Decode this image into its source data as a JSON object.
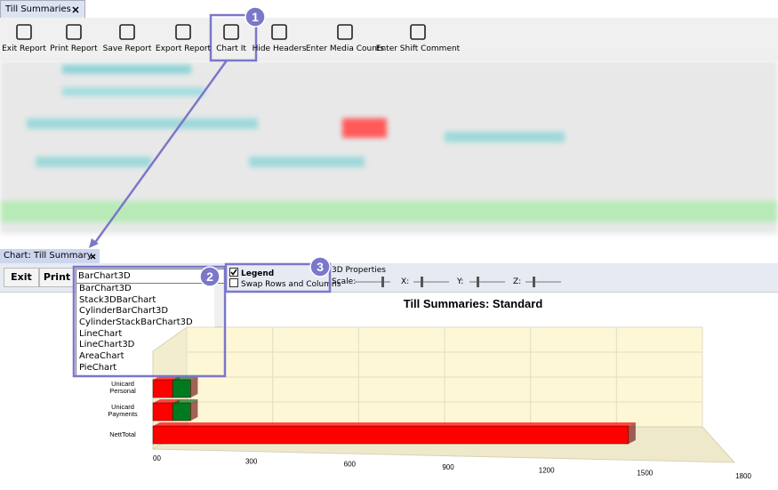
{
  "tab": {
    "title": "Till Summaries"
  },
  "toolbar": [
    "Exit Report",
    "Print Report",
    "Save Report",
    "Export Report",
    "Chart It",
    "Hide Headers",
    "Enter Media Counts",
    "Enter Shift Comment"
  ],
  "callouts": [
    "1",
    "2",
    "3"
  ],
  "chart_window": {
    "tab": "Chart: Till Summary",
    "buttons": [
      "Exit",
      "Print"
    ],
    "chart_type": {
      "selected": "BarChart3D",
      "options": [
        "BarChart3D",
        "Stack3DBarChart",
        "CylinderBarChart3D",
        "CylinderStackBarChart3D",
        "LineChart",
        "LineChart3D",
        "AreaChart",
        "PieChart"
      ]
    },
    "checkboxes": [
      {
        "label": "Legend",
        "checked": true
      },
      {
        "label": "Swap Rows and Columns",
        "checked": false
      }
    ],
    "properties": {
      "title": "3D Properties",
      "sliders": [
        "Scale:",
        "X:",
        "Y:",
        "Z:"
      ]
    }
  },
  "chart_data": {
    "type": "bar",
    "orientation": "horizontal",
    "title": "Till Summaries: Standard",
    "categories": [
      "NettTotal",
      "Unicard Payments",
      "Unicard Personal"
    ],
    "series": [
      {
        "color": "#ff0000",
        "values": [
          1450,
          60,
          60
        ]
      },
      {
        "color": "#007a1e",
        "values": [
          0,
          55,
          55
        ]
      }
    ],
    "xlim": [
      0,
      1800
    ],
    "xticks": [
      {
        "value": 0,
        "label": "00"
      },
      300,
      600,
      900,
      1200,
      1500,
      1800
    ],
    "grid": true
  }
}
